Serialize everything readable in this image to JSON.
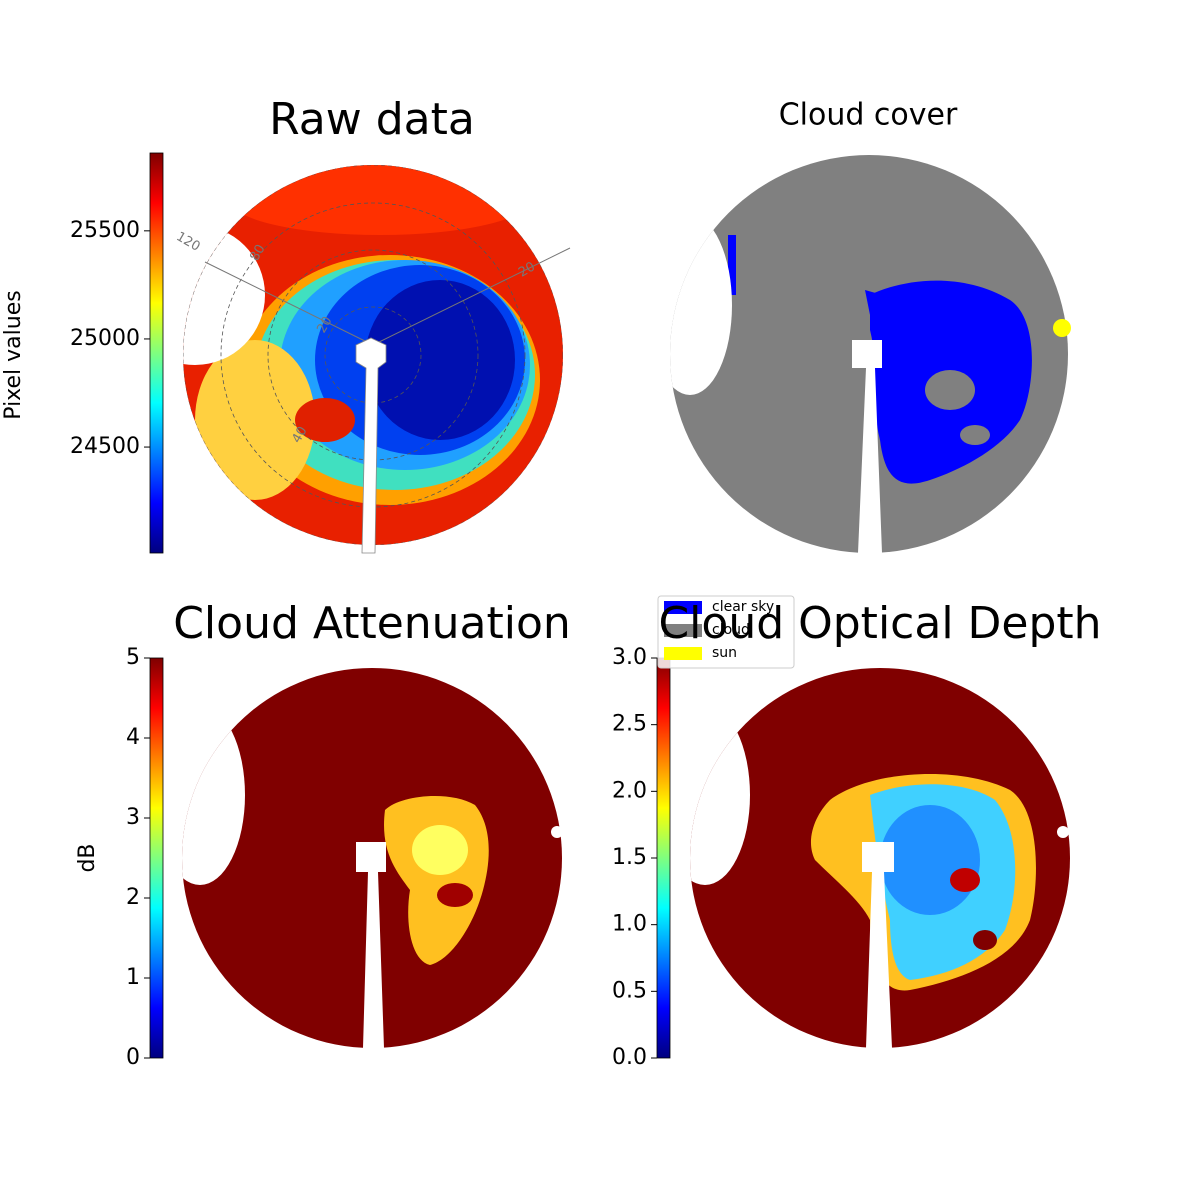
{
  "chart_data": [
    {
      "type": "image",
      "title": "Raw data",
      "colorbar_label": "Pixel values",
      "ylim": [
        24010,
        25860
      ],
      "yticks": [
        24500,
        25000,
        25500
      ],
      "annotations": [
        "120",
        "80",
        "20",
        "40",
        "20"
      ]
    },
    {
      "type": "image",
      "title": "Cloud cover",
      "series": [
        {
          "name": "clear sky",
          "color": "#0000ff"
        },
        {
          "name": "cloud",
          "color": "#808080"
        },
        {
          "name": "sun",
          "color": "#ffff00"
        }
      ]
    },
    {
      "type": "image",
      "title": "Cloud Attenuation",
      "colorbar_label": "dB",
      "ylim": [
        0,
        5
      ],
      "yticks": [
        0,
        1,
        2,
        3,
        4,
        5
      ]
    },
    {
      "type": "image",
      "title": "Cloud Optical Depth",
      "ylim": [
        0,
        3
      ],
      "yticks": [
        {
          "value": 0,
          "label": "0.0"
        },
        0.5,
        {
          "value": 1,
          "label": "1.0"
        },
        1.5,
        {
          "value": 2,
          "label": "2.0"
        },
        2.5,
        {
          "value": 3,
          "label": "3.0"
        }
      ]
    }
  ]
}
